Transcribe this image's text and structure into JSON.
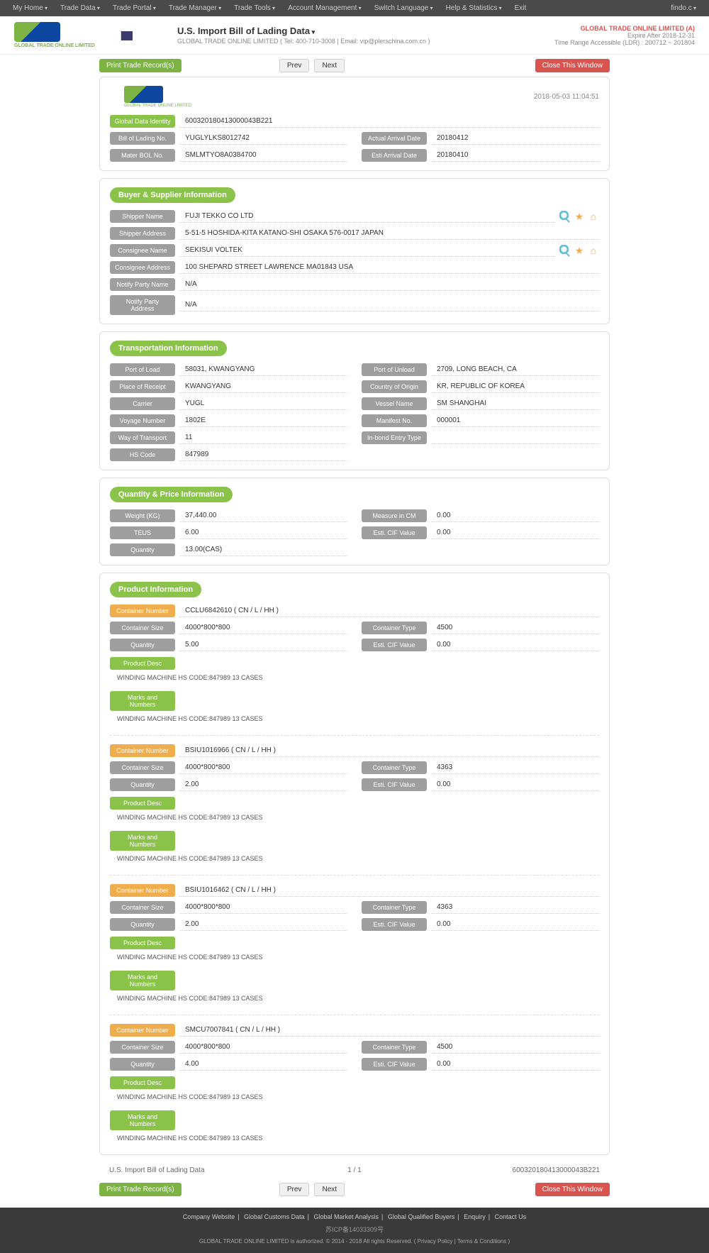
{
  "topMenu": {
    "items": [
      "My Home",
      "Trade Data",
      "Trade Portal",
      "Trade Manager",
      "Trade Tools",
      "Account Management",
      "Switch Language",
      "Help & Statistics"
    ],
    "exit": "Exit",
    "right": "findo.c"
  },
  "header": {
    "logoText": "GLOBAL TRADE ONLINE LIMITED",
    "title": "U.S. Import Bill of Lading Data",
    "subtitle": "GLOBAL TRADE ONLINE LIMITED ( Tel: 400-710-3008 | Email: vip@plerschina.com.cn )",
    "company": "GLOBAL TRADE ONLINE LIMITED (A)",
    "expire": "Expire After 2018-12-31",
    "range": "Time Range Accessible (LDR) : 200712 ~ 201804"
  },
  "actions": {
    "print": "Print Trade Record(s)",
    "prev": "Prev",
    "next": "Next",
    "close": "Close This Window"
  },
  "meta": {
    "timestamp": "2018-05-03 11:04:51",
    "logoText": "GLOBAL TRADE ONLINE LIMITED"
  },
  "identity": {
    "labels": {
      "gdi": "Global Data Identity",
      "bol": "Bill of Lading No.",
      "mbol": "Mater BOL No.",
      "aad": "Actual Arrival Date",
      "ead": "Esti Arrival Date"
    },
    "gdi": "600320180413000043B221",
    "bol": "YUGLYLKS8012742",
    "mbol": "SMLMTYO8A0384700",
    "aad": "20180412",
    "ead": "20180410"
  },
  "buyerSupplier": {
    "title": "Buyer & Supplier Information",
    "labels": {
      "shipperName": "Shipper Name",
      "shipperAddr": "Shipper Address",
      "consigneeName": "Consignee Name",
      "consigneeAddr": "Consignee Address",
      "notifyName": "Notify Party Name",
      "notifyAddr": "Notify Party Address"
    },
    "shipperName": "FUJI TEKKO CO LTD",
    "shipperAddr": "5-51-5 HOSHIDA-KITA KATANO-SHI OSAKA 576-0017 JAPAN",
    "consigneeName": "SEKISUI VOLTEK",
    "consigneeAddr": "100 SHEPARD STREET LAWRENCE MA01843 USA",
    "notifyName": "N/A",
    "notifyAddr": "N/A"
  },
  "transport": {
    "title": "Transportation Information",
    "labels": {
      "pol": "Port of Load",
      "pou": "Port of Unload",
      "por": "Place of Receipt",
      "coo": "Country of Origin",
      "carrier": "Carrier",
      "vessel": "Vessel Name",
      "voyage": "Voyage Number",
      "manifest": "Manifest No.",
      "way": "Way of Transport",
      "inbond": "In-bond Entry Type",
      "hs": "HS Code"
    },
    "pol": "58031, KWANGYANG",
    "pou": "2709, LONG BEACH, CA",
    "por": "KWANGYANG",
    "coo": "KR, REPUBLIC OF KOREA",
    "carrier": "YUGL",
    "vessel": "SM SHANGHAI",
    "voyage": "1802E",
    "manifest": "000001",
    "way": "11",
    "inbond": "",
    "hs": "847989"
  },
  "quantity": {
    "title": "Quantity & Price Information",
    "labels": {
      "weight": "Weight (KG)",
      "measure": "Measure in CM",
      "teus": "TEUS",
      "cif": "Esti. CIF Value",
      "qty": "Quantity"
    },
    "weight": "37,440.00",
    "measure": "0.00",
    "teus": "6.00",
    "cif": "0.00",
    "qty": "13.00(CAS)"
  },
  "product": {
    "title": "Product Information",
    "labels": {
      "containerNo": "Container Number",
      "containerSize": "Container Size",
      "containerType": "Container Type",
      "qty": "Quantity",
      "cif": "Esti. CIF Value",
      "desc": "Product Desc",
      "marks": "Marks and Numbers"
    },
    "containers": [
      {
        "no": "CCLU6842610 ( CN / L / HH )",
        "size": "4000*800*800",
        "type": "4500",
        "qty": "5.00",
        "cif": "0.00",
        "desc": "WINDING MACHINE HS CODE:847989 13 CASES",
        "marks": "WINDING MACHINE HS CODE:847989 13 CASES"
      },
      {
        "no": "BSIU1016966 ( CN / L / HH )",
        "size": "4000*800*800",
        "type": "4363",
        "qty": "2.00",
        "cif": "0.00",
        "desc": "WINDING MACHINE HS CODE:847989 13 CASES",
        "marks": "WINDING MACHINE HS CODE:847989 13 CASES"
      },
      {
        "no": "BSIU1016462 ( CN / L / HH )",
        "size": "4000*800*800",
        "type": "4363",
        "qty": "2.00",
        "cif": "0.00",
        "desc": "WINDING MACHINE HS CODE:847989 13 CASES",
        "marks": "WINDING MACHINE HS CODE:847989 13 CASES"
      },
      {
        "no": "SMCU7007841 ( CN / L / HH )",
        "size": "4000*800*800",
        "type": "4500",
        "qty": "4.00",
        "cif": "0.00",
        "desc": "WINDING MACHINE HS CODE:847989 13 CASES",
        "marks": "WINDING MACHINE HS CODE:847989 13 CASES"
      }
    ]
  },
  "bottomInfo": {
    "title": "U.S. Import Bill of Lading Data",
    "page": "1 / 1",
    "id": "600320180413000043B221"
  },
  "footer": {
    "links": [
      "Company Website",
      "Global Customs Data",
      "Global Market Analysis",
      "Global Qualified Buyers",
      "Enquiry",
      "Contact Us"
    ],
    "icp": "苏ICP备14033309号",
    "copyPrefix": "GLOBAL TRADE ONLINE LIMITED is authorized. © 2014 - 2018 All rights Reserved.   (  ",
    "privacy": "Privacy Policy",
    "sep": "  |  ",
    "terms": "Terms & Conditions",
    "copySuffix": "  )"
  },
  "colors": {
    "menuBg": "#4a4a4a",
    "green": "#8bc34a",
    "btnGreen": "#7cb342",
    "gray": "#9e9e9e",
    "orange": "#f0ad4e",
    "red": "#d9534f"
  }
}
